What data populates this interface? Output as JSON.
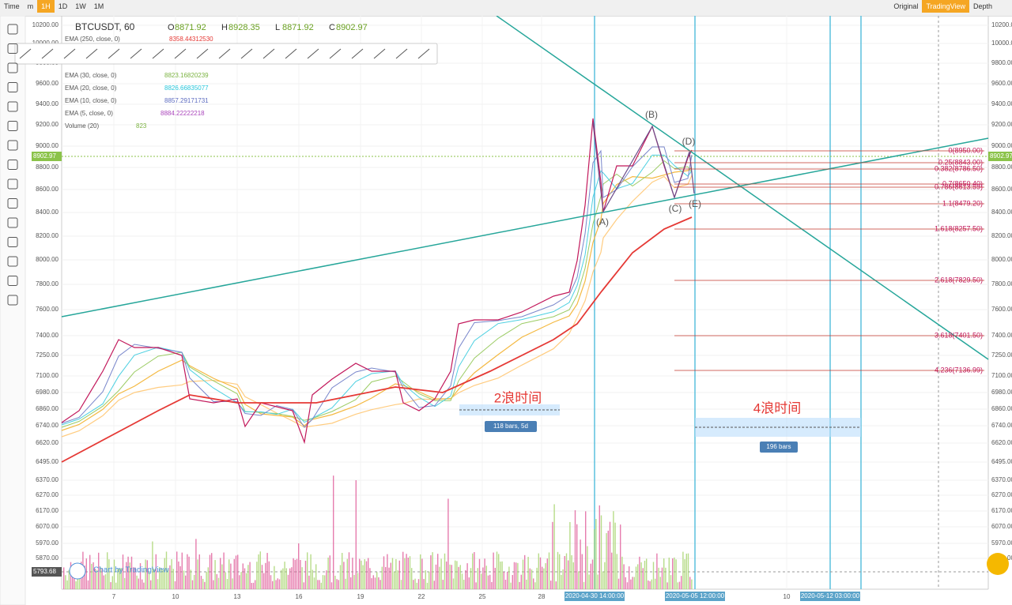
{
  "toolbar": {
    "left": [
      "Time",
      "m",
      "1H",
      "1D",
      "1W",
      "1M"
    ],
    "right": [
      "Original",
      "TradingView",
      "Depth"
    ]
  },
  "legend": {
    "symbol": "BTCUSDT, 60",
    "ohlc": [
      {
        "label": "O",
        "value": "8871.92"
      },
      {
        "label": "H",
        "value": "8928.35"
      },
      {
        "label": "L",
        "value": "8871.92"
      },
      {
        "label": "C",
        "value": "8902.97"
      }
    ],
    "indicators": [
      {
        "name": "EMA (250, close, 0)",
        "value": "8358.44312530",
        "color": "#e53935"
      },
      {
        "name": "EMA (30, close, 0)",
        "value": "8823.16820239",
        "color": "#7cb342"
      },
      {
        "name": "EMA (20, close, 0)",
        "value": "8826.66835077",
        "color": "#26c6da"
      },
      {
        "name": "EMA (10, close, 0)",
        "value": "8857.29171731",
        "color": "#5c6bc0"
      },
      {
        "name": "EMA (5, close, 0)",
        "value": "8884.22222218",
        "color": "#ab47bc"
      },
      {
        "name": "Volume (20)",
        "value": "823",
        "color": "#7cb342"
      }
    ]
  },
  "price_axis": [
    "10200.00",
    "10000.00",
    "9800.00",
    "9600.00",
    "9400.00",
    "9200.00",
    "9000.00",
    "8800.00",
    "8600.00",
    "8400.00",
    "8200.00",
    "8000.00",
    "7800.00",
    "7600.00",
    "7400.00",
    "7250.00",
    "7100.00",
    "6980.00",
    "6860.00",
    "6740.00",
    "6620.00",
    "6495.00",
    "6370.00",
    "6270.00",
    "6170.00",
    "6070.00",
    "5970.00",
    "5870.00"
  ],
  "price_badges": {
    "last": "8902.97",
    "volume": "5793.68"
  },
  "time_axis": [
    "7",
    "10",
    "13",
    "16",
    "19",
    "22",
    "25",
    "28",
    "10"
  ],
  "time_highlights": [
    "2020-04-30 14:00:00",
    "2020-05-05 12:00:00",
    "2020-05-12 03:00:00"
  ],
  "fib_levels": [
    "0(8950.00)",
    "0.25(8843.00)",
    "0.382(8786.50)",
    "0.7(8650.40)",
    "0.786(8613.59)",
    "1.1(8479.20)",
    "1.618(8257.50)",
    "2.618(7829.50)",
    "3.618(7401.50)",
    "4.236(7136.99)"
  ],
  "wave_points": [
    "(A)",
    "(B)",
    "(C)",
    "(D)",
    "(E)"
  ],
  "annotations": {
    "wave2": "2浪时间",
    "wave2_range": "118 bars, 5d",
    "wave4": "4浪时间",
    "wave4_range": "196 bars"
  },
  "watermark": "Chart by TradingView"
}
